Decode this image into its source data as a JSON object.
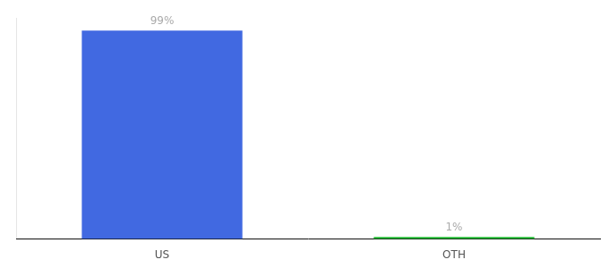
{
  "chart_data": {
    "type": "bar",
    "categories": [
      "US",
      "OTH"
    ],
    "values": [
      99,
      1
    ],
    "value_labels": [
      "99%",
      "1%"
    ],
    "data_labels": true,
    "colors": [
      "#4169e1",
      "#22bb33"
    ],
    "ylim": [
      0,
      105
    ],
    "grid": false,
    "tick_labels": "x"
  }
}
